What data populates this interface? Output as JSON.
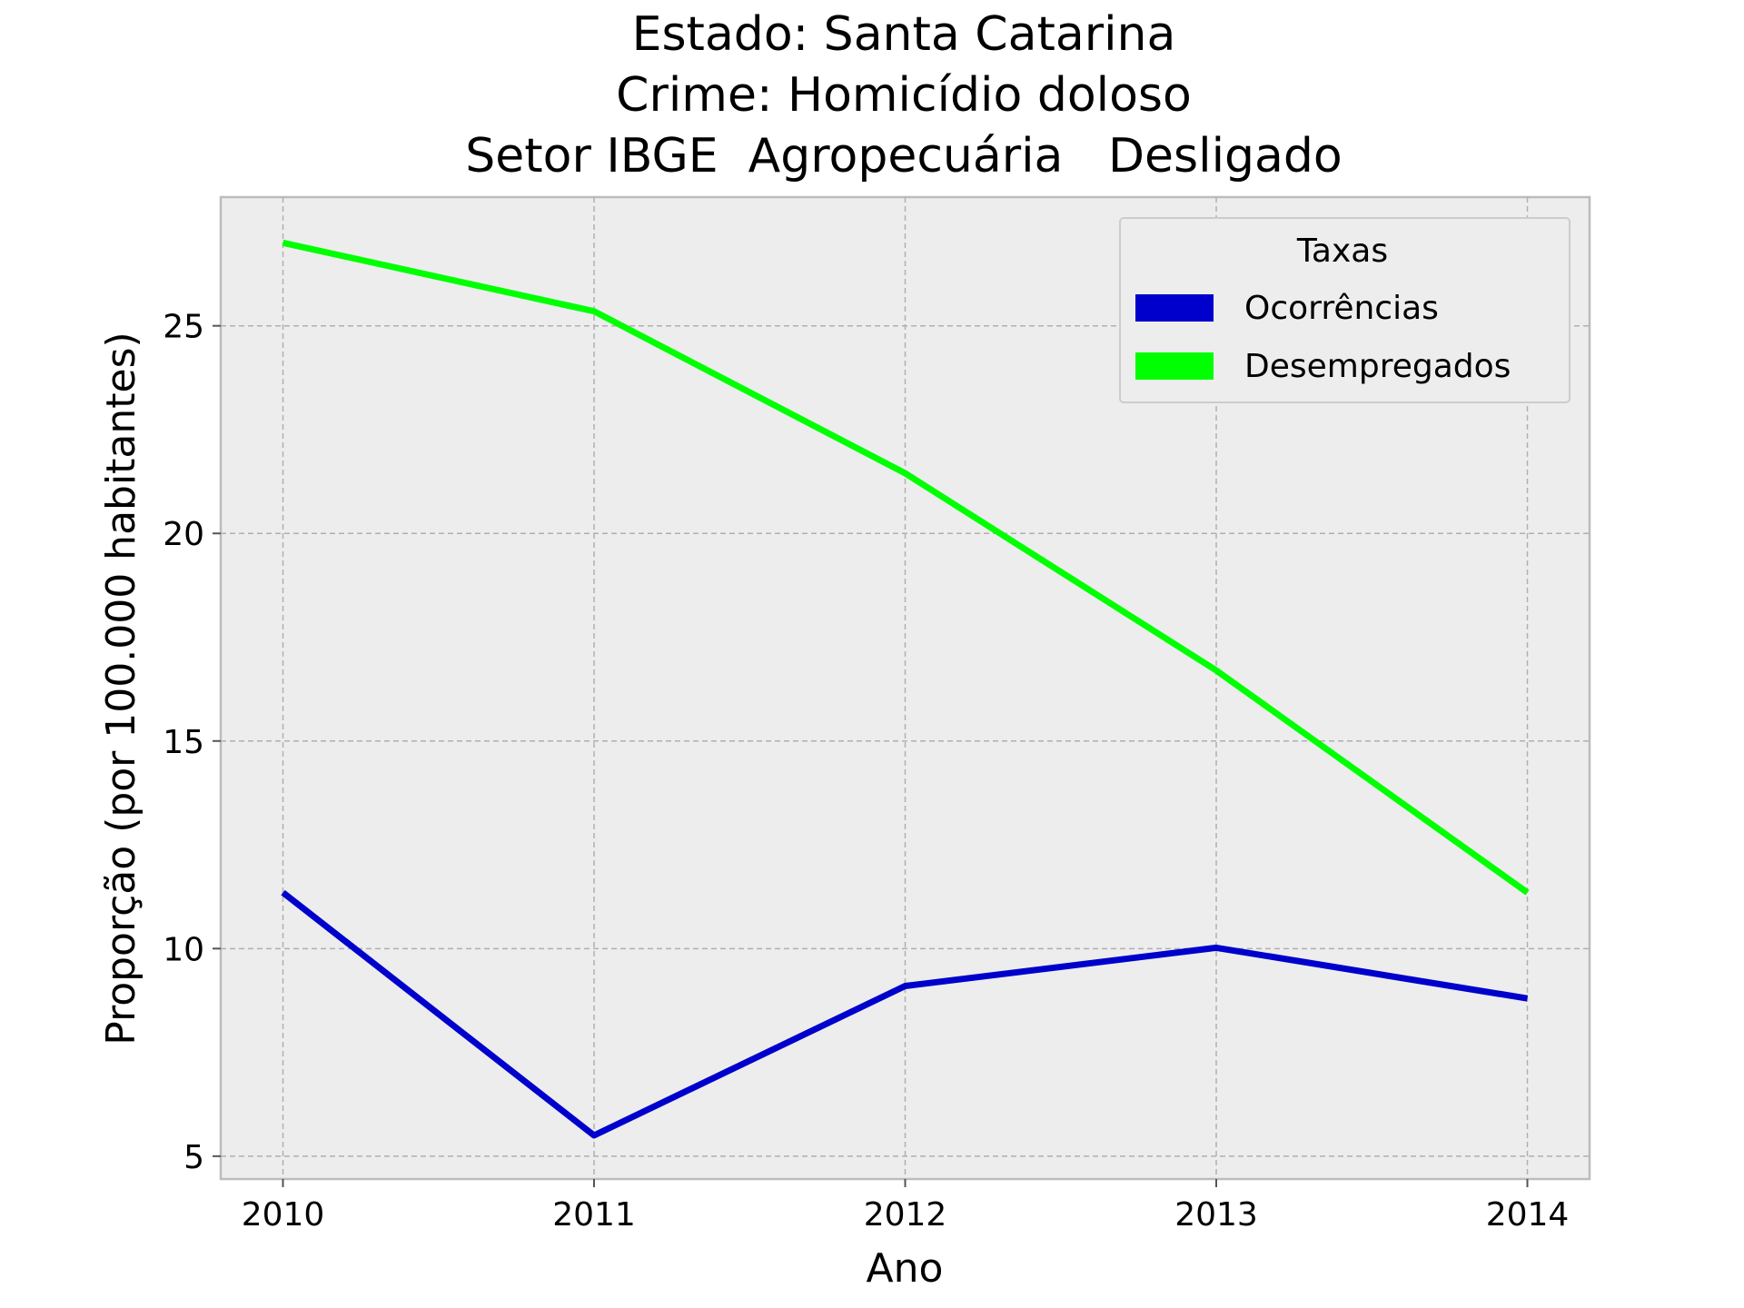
{
  "chart_data": {
    "type": "line",
    "title_lines": [
      "Estado: Santa Catarina",
      "Crime: Homicídio doloso",
      "Setor IBGE  Agropecuária   Desligado"
    ],
    "xlabel": "Ano",
    "ylabel": "Proporção (por 100.000 habitantes)",
    "x": [
      2010,
      2011,
      2012,
      2013,
      2014
    ],
    "xlim": [
      2009.8,
      2014.2
    ],
    "ylim": [
      4.45,
      28.1
    ],
    "yticks": [
      5,
      10,
      15,
      20,
      25
    ],
    "grid": true,
    "legend": {
      "title": "Taxas",
      "position": "top-right"
    },
    "series": [
      {
        "name": "Ocorrências",
        "color": "#0000cc",
        "values": [
          11.35,
          5.5,
          9.1,
          10.02,
          8.8
        ]
      },
      {
        "name": "Desempregados",
        "color": "#00ff00",
        "values": [
          27.0,
          25.35,
          21.45,
          16.7,
          11.35
        ]
      }
    ]
  }
}
